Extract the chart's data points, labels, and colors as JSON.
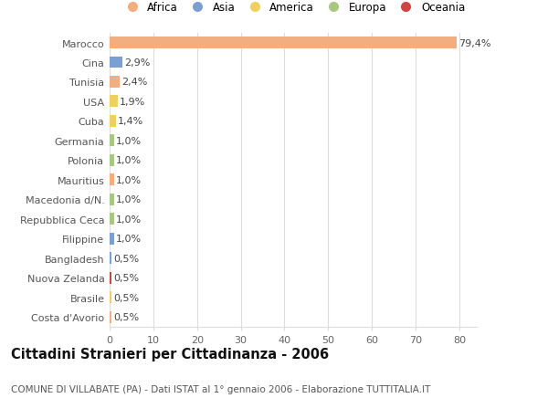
{
  "countries": [
    "Marocco",
    "Cina",
    "Tunisia",
    "USA",
    "Cuba",
    "Germania",
    "Polonia",
    "Mauritius",
    "Macedonia d/N.",
    "Repubblica Ceca",
    "Filippine",
    "Bangladesh",
    "Nuova Zelanda",
    "Brasile",
    "Costa d'Avorio"
  ],
  "values": [
    79.4,
    2.9,
    2.4,
    1.9,
    1.4,
    1.0,
    1.0,
    1.0,
    1.0,
    1.0,
    1.0,
    0.5,
    0.5,
    0.5,
    0.5
  ],
  "labels": [
    "79,4%",
    "2,9%",
    "2,4%",
    "1,9%",
    "1,4%",
    "1,0%",
    "1,0%",
    "1,0%",
    "1,0%",
    "1,0%",
    "1,0%",
    "0,5%",
    "0,5%",
    "0,5%",
    "0,5%"
  ],
  "continents": [
    "Africa",
    "Asia",
    "Africa",
    "America",
    "America",
    "Europa",
    "Europa",
    "Africa",
    "Europa",
    "Europa",
    "Asia",
    "Asia",
    "Oceania",
    "America",
    "Africa"
  ],
  "continent_colors": {
    "Africa": "#F2AD80",
    "Asia": "#7B9FD0",
    "America": "#EDD060",
    "Europa": "#A8C882",
    "Oceania": "#CC4444"
  },
  "legend_order": [
    "Africa",
    "Asia",
    "America",
    "Europa",
    "Oceania"
  ],
  "title": "Cittadini Stranieri per Cittadinanza - 2006",
  "subtitle": "COMUNE DI VILLABATE (PA) - Dati ISTAT al 1° gennaio 2006 - Elaborazione TUTTITALIA.IT",
  "xlim": [
    0,
    84
  ],
  "xticks": [
    0,
    10,
    20,
    30,
    40,
    50,
    60,
    70,
    80
  ],
  "background_color": "#ffffff",
  "grid_color": "#dddddd",
  "bar_height": 0.6,
  "label_fontsize": 8,
  "tick_fontsize": 8,
  "title_fontsize": 10.5,
  "subtitle_fontsize": 7.5
}
